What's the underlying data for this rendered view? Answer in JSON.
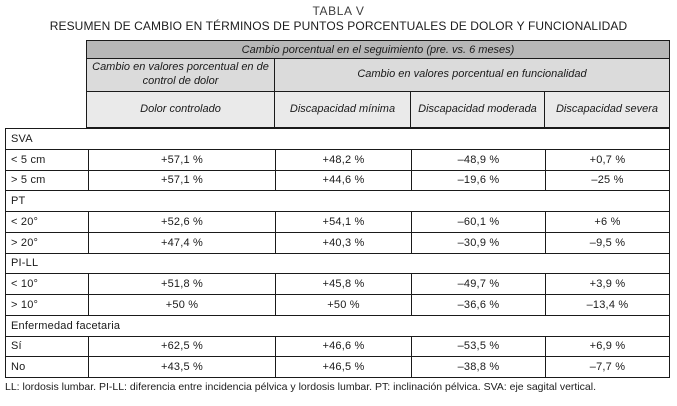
{
  "title": "TABLA V",
  "subtitle": "RESUMEN DE CAMBIO EN TÉRMINOS DE PUNTOS PORCENTUALES DE DOLOR Y FUNCIONALIDAD",
  "header": {
    "top": "Cambio porcentual en el seguimiento (pre. vs. 6 meses)",
    "pain_group": "Cambio en valores porcentual en de control de dolor",
    "function_group": "Cambio en valores porcentual en  funcionalidad",
    "columns": [
      "Dolor controlado",
      "Discapacidad mínima",
      "Discapacidad moderada",
      "Discapacidad severa"
    ]
  },
  "rows": [
    {
      "type": "section",
      "label": "SVA"
    },
    {
      "type": "data",
      "cells": [
        "< 5 cm",
        "+57,1 %",
        "+48,2 %",
        "–48,9 %",
        "+0,7 %"
      ]
    },
    {
      "type": "data",
      "cells": [
        "> 5 cm",
        "+57,1 %",
        "+44,6 %",
        "–19,6 %",
        "–25 %"
      ]
    },
    {
      "type": "section",
      "label": "PT"
    },
    {
      "type": "data",
      "cells": [
        "< 20°",
        "+52,6 %",
        "+54,1 %",
        "–60,1 %",
        "+6 %"
      ]
    },
    {
      "type": "data",
      "cells": [
        "> 20°",
        "+47,4 %",
        "+40,3 %",
        "–30,9 %",
        "–9,5 %"
      ]
    },
    {
      "type": "section",
      "label": "PI-LL"
    },
    {
      "type": "data",
      "cells": [
        "< 10°",
        "+51,8 %",
        "+45,8 %",
        "–49,7 %",
        "+3,9 %"
      ]
    },
    {
      "type": "data",
      "cells": [
        "> 10°",
        "+50 %",
        "+50 %",
        "–36,6 %",
        "–13,4 %"
      ]
    },
    {
      "type": "section",
      "label": "Enfermedad facetaria"
    },
    {
      "type": "data",
      "cells": [
        "Sí",
        "+62,5 %",
        "+46,6 %",
        "–53,5 %",
        "+6,9 %"
      ]
    },
    {
      "type": "data",
      "cells": [
        "No",
        "+43,5 %",
        "+46,5 %",
        "–38,8 %",
        "–7,7 %"
      ]
    }
  ],
  "footnote": "LL: lordosis lumbar. PI-LL: diferencia entre incidencia pélvica y lordosis lumbar. PT: inclinación pélvica. SVA: eje sagital vertical.",
  "colors": {
    "header-dark": "#b7b7b7",
    "header-mid": "#dbdbdb",
    "header-light": "#eaeaea",
    "border": "#1a1a1a"
  }
}
